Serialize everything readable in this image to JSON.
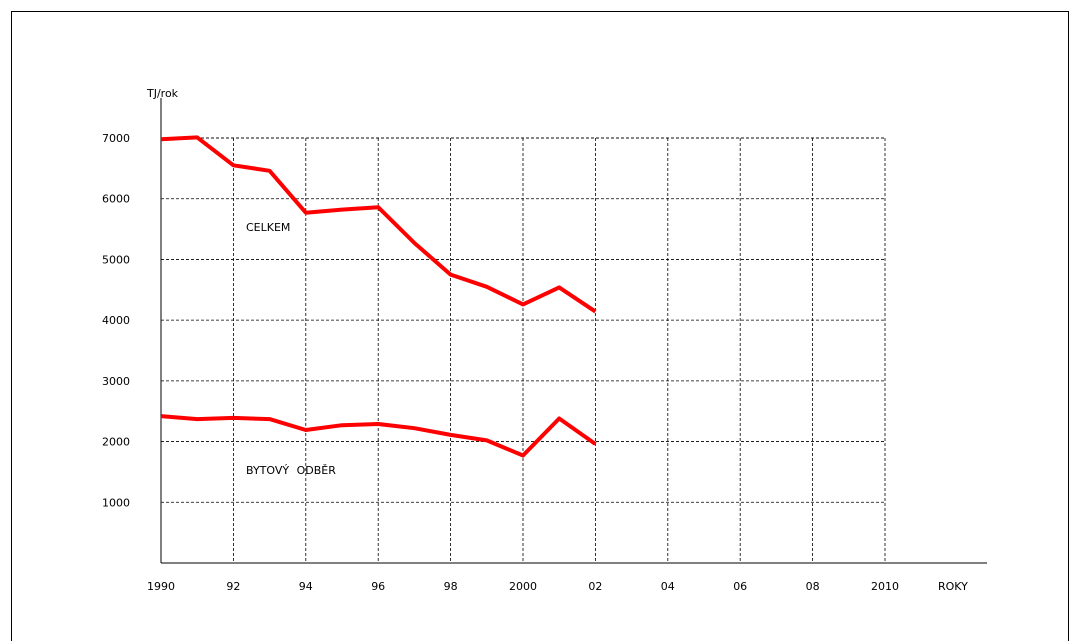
{
  "chart_data": {
    "type": "line",
    "ylabel": "TJ/rok",
    "xlabel": "ROKY",
    "x_ticks": [
      {
        "value": 1990,
        "label": "1990"
      },
      {
        "value": 1992,
        "label": "92"
      },
      {
        "value": 1994,
        "label": "94"
      },
      {
        "value": 1996,
        "label": "96"
      },
      {
        "value": 1998,
        "label": "98"
      },
      {
        "value": 2000,
        "label": "2000"
      },
      {
        "value": 2002,
        "label": "02"
      },
      {
        "value": 2004,
        "label": "04"
      },
      {
        "value": 2006,
        "label": "06"
      },
      {
        "value": 2008,
        "label": "08"
      },
      {
        "value": 2010,
        "label": "2010"
      }
    ],
    "y_ticks": [
      1000,
      2000,
      3000,
      4000,
      5000,
      6000,
      7000
    ],
    "xlim": [
      1990,
      2010
    ],
    "ylim": [
      0,
      7000
    ],
    "grid": true,
    "color": "#ff0000",
    "series": [
      {
        "name": "CELKEM",
        "x": [
          1990,
          1991,
          1992,
          1993,
          1994,
          1995,
          1996,
          1997,
          1998,
          1999,
          2000,
          2001,
          2002
        ],
        "y": [
          6980,
          7010,
          6550,
          6460,
          5770,
          5820,
          5860,
          5270,
          4750,
          4550,
          4260,
          4540,
          4140
        ]
      },
      {
        "name": "BYTOVÝ ODBĚR",
        "x": [
          1990,
          1991,
          1992,
          1993,
          1994,
          1995,
          1996,
          1997,
          1998,
          1999,
          2000,
          2001,
          2002
        ],
        "y": [
          2420,
          2370,
          2390,
          2370,
          2190,
          2270,
          2290,
          2220,
          2110,
          2020,
          1770,
          2380,
          1960
        ]
      }
    ]
  }
}
